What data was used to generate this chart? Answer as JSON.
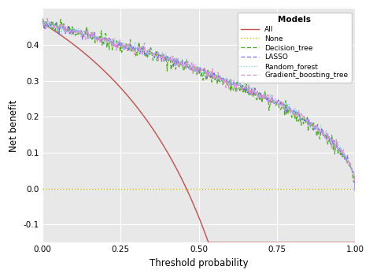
{
  "title": "",
  "xlabel": "Threshold probability",
  "ylabel": "Net benefit",
  "xlim": [
    0.0,
    1.0
  ],
  "ylim": [
    -0.15,
    0.5
  ],
  "yticks": [
    -0.1,
    0.0,
    0.1,
    0.2,
    0.3,
    0.4
  ],
  "xticks": [
    0.0,
    0.25,
    0.5,
    0.75,
    1.0
  ],
  "fig_bg_color": "#ffffff",
  "plot_bg_color": "#e8e8e8",
  "grid_color": "#ffffff",
  "legend_title": "Models",
  "prev": 0.46,
  "all_color": "#c0504d",
  "none_color": "#c8b400",
  "dt_color": "#4dac26",
  "lasso_color": "#7b68ee",
  "rf_color": "#87ceeb",
  "gbt_color": "#d896c8"
}
